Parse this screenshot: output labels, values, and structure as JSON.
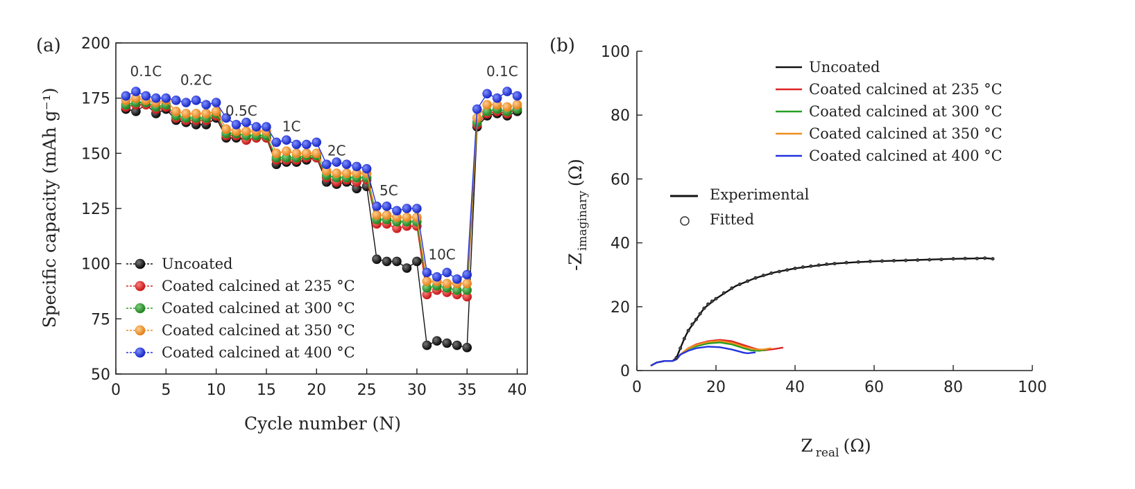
{
  "chart_data": [
    {
      "panel_label": "(a)",
      "type": "scatter",
      "xlabel": "Cycle number (N)",
      "ylabel": "Specific capacity (mAh g⁻¹)",
      "xlim": [
        0,
        41
      ],
      "ylim": [
        50,
        200
      ],
      "xticks": [
        0,
        5,
        10,
        15,
        20,
        25,
        30,
        35,
        40
      ],
      "yticks": [
        50,
        75,
        100,
        125,
        150,
        175,
        200
      ],
      "rate_labels": [
        {
          "text": "0.1C",
          "x": 3,
          "y": 185
        },
        {
          "text": "0.2C",
          "x": 8,
          "y": 181
        },
        {
          "text": "0.5C",
          "x": 12.5,
          "y": 167
        },
        {
          "text": "1C",
          "x": 17.5,
          "y": 160
        },
        {
          "text": "2C",
          "x": 22,
          "y": 149
        },
        {
          "text": "5C",
          "x": 27.2,
          "y": 131
        },
        {
          "text": "10C",
          "x": 32.5,
          "y": 102
        },
        {
          "text": "0.1C",
          "x": 38.5,
          "y": 185
        }
      ],
      "x": [
        1,
        2,
        3,
        4,
        5,
        6,
        7,
        8,
        9,
        10,
        11,
        12,
        13,
        14,
        15,
        16,
        17,
        18,
        19,
        20,
        21,
        22,
        23,
        24,
        25,
        26,
        27,
        28,
        29,
        30,
        31,
        32,
        33,
        34,
        35,
        36,
        37,
        38,
        39,
        40
      ],
      "series": [
        {
          "name": "Uncoated",
          "color": "#111111",
          "values": [
            170,
            169,
            172,
            168,
            170,
            165,
            164,
            163,
            163,
            166,
            157,
            157,
            156,
            157,
            157,
            145,
            146,
            146,
            147,
            148,
            137,
            136,
            137,
            134,
            135,
            102,
            101,
            101,
            98,
            101,
            63,
            65,
            64,
            63,
            62,
            162,
            167,
            168,
            167,
            169
          ]
        },
        {
          "name": "Coated calcined at 235 °C",
          "color": "#dd2222",
          "values": [
            171,
            172,
            172,
            170,
            171,
            166,
            165,
            165,
            165,
            167,
            158,
            158,
            156,
            157,
            157,
            147,
            147,
            147,
            148,
            148,
            139,
            137,
            138,
            137,
            138,
            118,
            118,
            116,
            117,
            117,
            86,
            88,
            87,
            86,
            85,
            163,
            168,
            169,
            168,
            170
          ]
        },
        {
          "name": "Coated calcined at 300 °C",
          "color": "#22a022",
          "values": [
            172,
            173,
            173,
            171,
            172,
            167,
            166,
            166,
            166,
            168,
            159,
            159,
            158,
            158,
            158,
            148,
            148,
            148,
            149,
            149,
            140,
            139,
            139,
            139,
            139,
            120,
            120,
            119,
            119,
            119,
            89,
            90,
            89,
            88,
            88,
            164,
            169,
            170,
            169,
            170
          ]
        },
        {
          "name": "Coated calcined at 350 °C",
          "color": "#f08c1e",
          "values": [
            174,
            175,
            174,
            173,
            174,
            169,
            168,
            168,
            168,
            169,
            161,
            160,
            160,
            160,
            160,
            150,
            151,
            150,
            150,
            150,
            142,
            141,
            141,
            141,
            141,
            122,
            122,
            121,
            121,
            121,
            92,
            92,
            91,
            91,
            91,
            166,
            172,
            172,
            171,
            172
          ]
        },
        {
          "name": "Coated calcined at 400 °C",
          "color": "#2233dd",
          "values": [
            176,
            178,
            176,
            175,
            175,
            174,
            173,
            174,
            172,
            173,
            166,
            163,
            164,
            162,
            162,
            155,
            156,
            154,
            154,
            155,
            145,
            146,
            145,
            144,
            143,
            126,
            126,
            124,
            125,
            125,
            96,
            94,
            96,
            93,
            95,
            170,
            177,
            175,
            178,
            176
          ]
        }
      ]
    },
    {
      "panel_label": "(b)",
      "type": "line",
      "xlabel_main": "Z",
      "xlabel_sub": "real",
      "xlabel_unit": "(Ω)",
      "ylabel_main": "-Z",
      "ylabel_sub": "imaginary",
      "ylabel_unit": "(Ω)",
      "xlim": [
        0,
        100
      ],
      "ylim": [
        0,
        100
      ],
      "xticks": [
        0,
        20,
        40,
        60,
        80,
        100
      ],
      "yticks": [
        0,
        20,
        40,
        60,
        80,
        100
      ],
      "legend_key_experimental": "Experimental",
      "legend_key_fitted": "Fitted",
      "series": [
        {
          "name": "Uncoated",
          "color": "#111111",
          "x": [
            3.5,
            5,
            7,
            9,
            10,
            11,
            12,
            13,
            15,
            17,
            20,
            25,
            30,
            35,
            40,
            45,
            50,
            55,
            60,
            65,
            70,
            75,
            80,
            85,
            88,
            90
          ],
          "y": [
            1.5,
            2.5,
            3,
            3,
            4,
            7,
            10,
            12.5,
            16,
            19.5,
            22.5,
            26.5,
            29,
            30.8,
            32,
            32.8,
            33.5,
            33.9,
            34.2,
            34.4,
            34.6,
            34.8,
            35,
            35.1,
            35.2,
            35
          ]
        },
        {
          "name": "Coated calcined at 235 °C",
          "color": "#dd2222",
          "x": [
            3.5,
            5,
            7,
            9,
            10,
            11,
            13,
            15,
            18,
            21,
            24,
            27,
            30,
            32,
            35,
            37
          ],
          "y": [
            1.5,
            2.5,
            3,
            3,
            3.5,
            5,
            7,
            8.2,
            9.2,
            9.6,
            9.2,
            8,
            6.8,
            6.3,
            6.8,
            7.2
          ]
        },
        {
          "name": "Coated calcined at 300 °C",
          "color": "#22a022",
          "x": [
            3.5,
            5,
            7,
            9,
            10,
            11,
            13,
            15,
            18,
            21,
            24,
            27,
            29,
            31,
            33
          ],
          "y": [
            1.5,
            2.5,
            3,
            3,
            3.5,
            5,
            6.8,
            7.6,
            8.5,
            8.8,
            8.2,
            7,
            6.3,
            6.2,
            6.6
          ]
        },
        {
          "name": "Coated calcined at 350 °C",
          "color": "#f08c1e",
          "x": [
            3.5,
            5,
            7,
            9,
            10,
            11,
            13,
            15,
            18,
            21,
            24,
            27,
            30,
            32,
            34
          ],
          "y": [
            1.5,
            2.5,
            3,
            3,
            3.5,
            5,
            7,
            8,
            9,
            9.3,
            8.7,
            7.5,
            6.6,
            6.6,
            7
          ]
        },
        {
          "name": "Coated calcined at 400 °C",
          "color": "#2233dd",
          "x": [
            3.5,
            5,
            7,
            9,
            10,
            11,
            13,
            15,
            18,
            21,
            24,
            27,
            28,
            30
          ],
          "y": [
            1.5,
            2.5,
            3,
            3,
            3.5,
            5,
            6.2,
            7,
            7.5,
            7.3,
            6.6,
            5.6,
            5.4,
            5.7
          ]
        }
      ],
      "fitted_uncoated": {
        "x": [
          10,
          11,
          12,
          13,
          14,
          15,
          16,
          17,
          18,
          19,
          20,
          22,
          24,
          26,
          28,
          30,
          32,
          34,
          36,
          38,
          40,
          42,
          44,
          46,
          48,
          50,
          53,
          56,
          59,
          62,
          65,
          68,
          71,
          74,
          77,
          80,
          83,
          86,
          88,
          90
        ],
        "y": [
          4,
          7,
          10,
          12.5,
          14.5,
          16,
          17.8,
          19.5,
          20.8,
          21.7,
          22.5,
          24.3,
          25.8,
          27,
          28,
          29,
          29.8,
          30.5,
          31,
          31.5,
          32,
          32.4,
          32.7,
          33,
          33.3,
          33.5,
          33.8,
          34,
          34.2,
          34.3,
          34.4,
          34.5,
          34.6,
          34.7,
          34.8,
          35,
          35.1,
          35.1,
          35.2,
          35
        ]
      }
    }
  ]
}
